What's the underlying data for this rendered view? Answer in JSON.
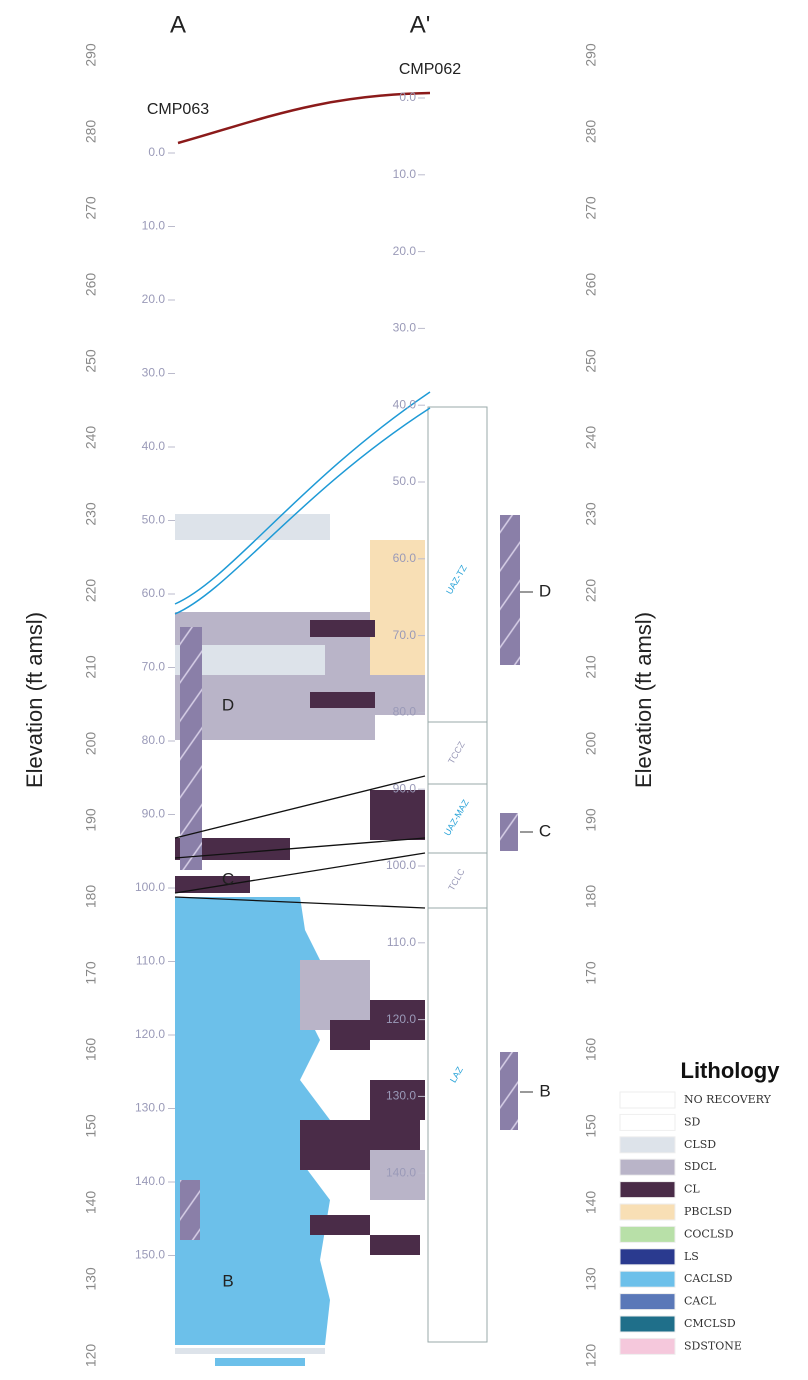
{
  "section": {
    "start": "A",
    "end": "A'"
  },
  "elevation_axis": {
    "label": "Elevation (ft amsl)",
    "ticks": [
      "290",
      "280",
      "270",
      "260",
      "250",
      "240",
      "230",
      "220",
      "210",
      "200",
      "190",
      "180",
      "170",
      "160",
      "150",
      "140",
      "130",
      "120"
    ]
  },
  "wells": [
    {
      "name": "CMP063",
      "depth_labels": [
        "0.0",
        "10.0",
        "20.0",
        "30.0",
        "40.0",
        "50.0",
        "60.0",
        "70.0",
        "80.0",
        "90.0",
        "100.0",
        "110.0",
        "120.0",
        "130.0",
        "140.0",
        "150.0"
      ]
    },
    {
      "name": "CMP062",
      "depth_labels": [
        "0.0",
        "10.0",
        "20.0",
        "30.0",
        "40.0",
        "50.0",
        "60.0",
        "70.0",
        "80.0",
        "90.0",
        "100.0",
        "110.0",
        "120.0",
        "130.0",
        "140.0"
      ]
    }
  ],
  "zones": [
    "UAZ-TZ",
    "TCCZ",
    "UAZ-MAZ",
    "TCLC",
    "LAZ"
  ],
  "units": [
    "D",
    "C",
    "B"
  ],
  "legend": {
    "title": "Lithology",
    "items": [
      {
        "label": "NO RECOVERY",
        "color": "#ffffff"
      },
      {
        "label": "SD",
        "color": "#ffffff"
      },
      {
        "label": "CLSD",
        "color": "#dde3ea"
      },
      {
        "label": "SDCL",
        "color": "#b9b4c8"
      },
      {
        "label": "CL",
        "color": "#4a2c48"
      },
      {
        "label": "PBCLSD",
        "color": "#f8dfb5"
      },
      {
        "label": "COCLSD",
        "color": "#b8e0a8"
      },
      {
        "label": "LS",
        "color": "#2a3a8f"
      },
      {
        "label": "CACLSD",
        "color": "#6cc0ea"
      },
      {
        "label": "CACL",
        "color": "#5a78b8"
      },
      {
        "label": "CMCLSD",
        "color": "#1f6f8a"
      },
      {
        "label": "SDSTONE",
        "color": "#f5c8dc"
      }
    ]
  }
}
